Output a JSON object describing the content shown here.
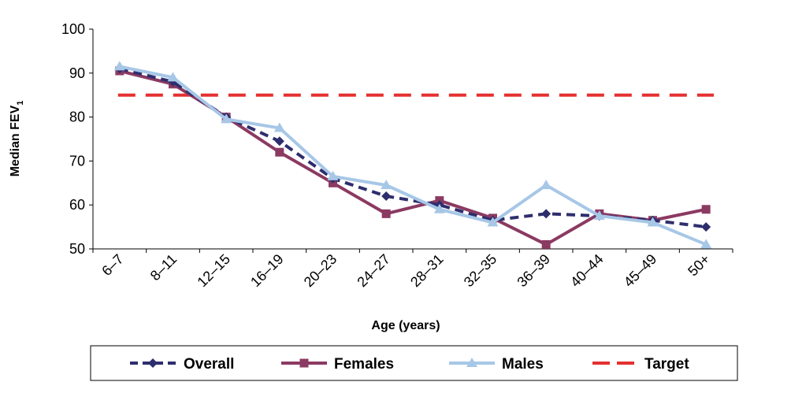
{
  "chart_data": {
    "type": "line",
    "categories": [
      "6–7",
      "8–11",
      "12–15",
      "16–19",
      "20–23",
      "24–27",
      "28–31",
      "32–35",
      "36–39",
      "40–44",
      "45–49",
      "50+"
    ],
    "ylabel": "Median FEV",
    "ylabel_subscript": "1",
    "xlabel": "Age (years)",
    "ylim": [
      50,
      100
    ],
    "yticks": [
      "50",
      "60",
      "70",
      "80",
      "90",
      "100"
    ],
    "legend_position": "bottom",
    "grid": false,
    "series": [
      {
        "name": "Overall",
        "color": "#2e2e6e",
        "style": "dashed",
        "marker": "diamond",
        "values": [
          91,
          88,
          80,
          74.5,
          66,
          62,
          60,
          56.5,
          58,
          57.5,
          56.5,
          55
        ]
      },
      {
        "name": "Females",
        "color": "#8b3a62",
        "style": "solid",
        "marker": "square",
        "values": [
          90.5,
          87.5,
          80,
          72,
          65,
          58,
          61,
          57,
          51,
          58,
          56.5,
          59
        ]
      },
      {
        "name": "Males",
        "color": "#a7c7e7",
        "style": "solid",
        "marker": "triangle",
        "values": [
          91.5,
          89,
          79.5,
          77.5,
          66.5,
          64.5,
          59,
          56,
          64.5,
          57.5,
          56,
          51
        ]
      },
      {
        "name": "Target",
        "color": "#e53030",
        "style": "long-dash",
        "marker": "none",
        "values": [
          85,
          85,
          85,
          85,
          85,
          85,
          85,
          85,
          85,
          85,
          85,
          85
        ]
      }
    ]
  }
}
